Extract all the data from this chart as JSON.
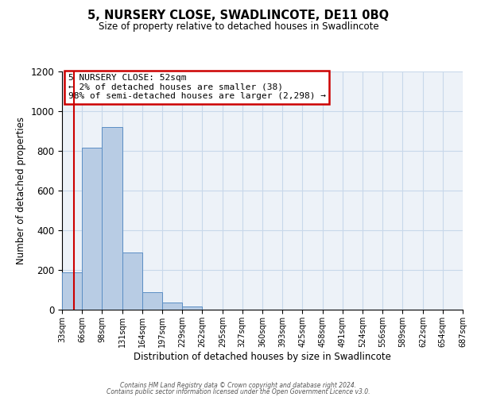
{
  "title": "5, NURSERY CLOSE, SWADLINCOTE, DE11 0BQ",
  "subtitle": "Size of property relative to detached houses in Swadlincote",
  "xlabel": "Distribution of detached houses by size in Swadlincote",
  "ylabel": "Number of detached properties",
  "bin_edges": [
    33,
    66,
    98,
    131,
    164,
    197,
    229,
    262,
    295,
    327,
    360,
    393,
    425,
    458,
    491,
    524,
    556,
    589,
    622,
    654,
    687
  ],
  "bin_labels": [
    "33sqm",
    "66sqm",
    "98sqm",
    "131sqm",
    "164sqm",
    "197sqm",
    "229sqm",
    "262sqm",
    "295sqm",
    "327sqm",
    "360sqm",
    "393sqm",
    "425sqm",
    "458sqm",
    "491sqm",
    "524sqm",
    "556sqm",
    "589sqm",
    "622sqm",
    "654sqm",
    "687sqm"
  ],
  "bar_heights": [
    190,
    815,
    920,
    290,
    90,
    38,
    16,
    0,
    0,
    0,
    0,
    0,
    0,
    0,
    0,
    0,
    0,
    0,
    0,
    0
  ],
  "bar_color": "#b8cce4",
  "bar_edge_color": "#5b8ec4",
  "ylim": [
    0,
    1200
  ],
  "yticks": [
    0,
    200,
    400,
    600,
    800,
    1000,
    1200
  ],
  "property_size": 52,
  "property_label": "5 NURSERY CLOSE: 52sqm",
  "annotation_line1": "← 2% of detached houses are smaller (38)",
  "annotation_line2": "98% of semi-detached houses are larger (2,298) →",
  "annotation_box_color": "#ffffff",
  "annotation_box_edge": "#cc0000",
  "vline_color": "#cc0000",
  "grid_color": "#c8d8ea",
  "bg_color": "#edf2f8",
  "footer_line1": "Contains HM Land Registry data © Crown copyright and database right 2024.",
  "footer_line2": "Contains public sector information licensed under the Open Government Licence v3.0."
}
